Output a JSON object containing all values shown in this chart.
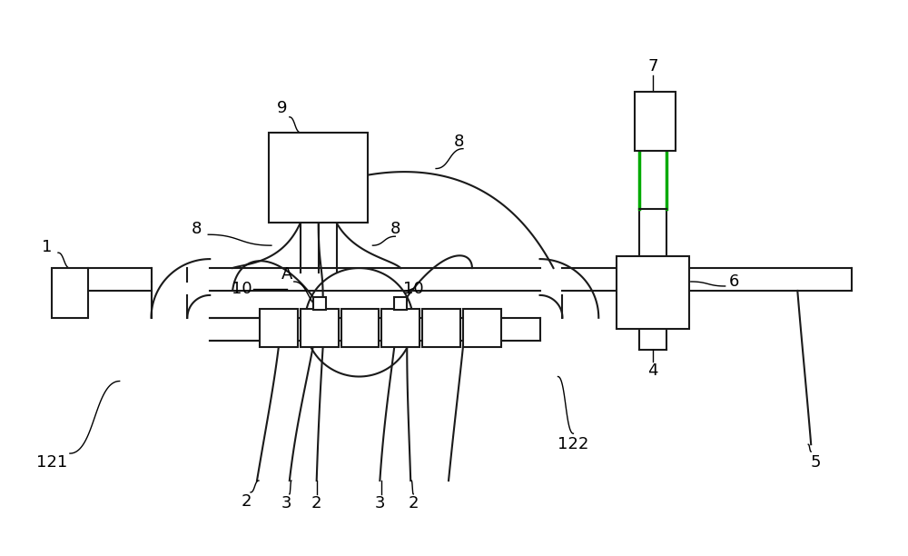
{
  "bg_color": "#ffffff",
  "line_color": "#1a1a1a",
  "green_color": "#00aa00",
  "figsize": [
    10.0,
    6.12
  ],
  "dpi": 100
}
